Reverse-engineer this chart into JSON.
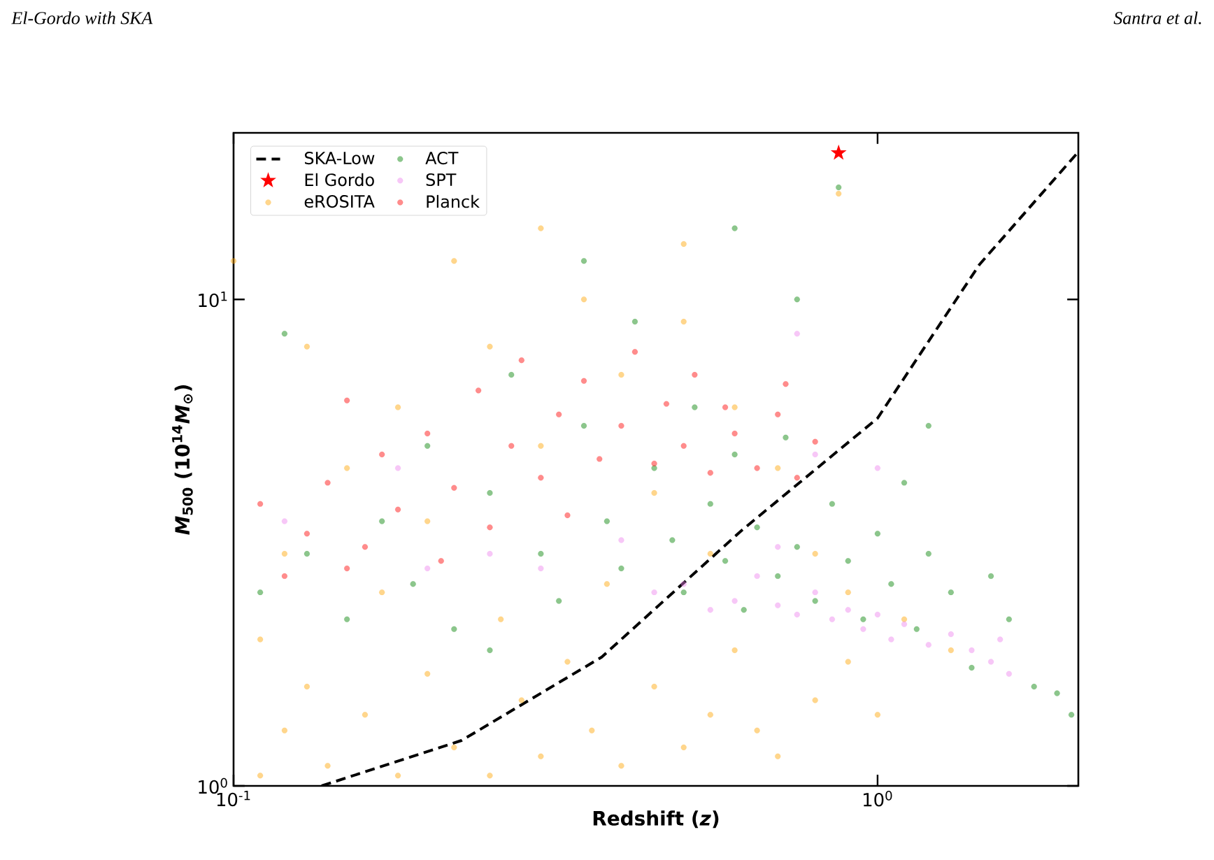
{
  "chart_data": {
    "type": "scatter",
    "xlabel": "Redshift (*z*)",
    "ylabel": "*M*$_{500}$ (10$^{14}$*M*$_{⊙}$)",
    "log": "xy",
    "legend": "top left",
    "xlim": [
      0.1,
      2.05
    ],
    "ylim": [
      1,
      22
    ],
    "xticks": [
      {
        "value": 0.1,
        "label": "10$^{-1}$"
      },
      {
        "value": 1,
        "label": "10$^{0}$"
      }
    ],
    "yticks": [
      {
        "value": 1,
        "label": "10$^{0}$"
      },
      {
        "value": 10,
        "label": "10$^{1}$"
      }
    ],
    "annotations": [
      "El-Gordo with SKA",
      "Santra et al."
    ],
    "series": [
      {
        "name": "SKA-Low",
        "type": "line",
        "color": "#000000",
        "line_style": "dashed",
        "marker": "none",
        "x": [
          0.137,
          0.226,
          0.373,
          0.615,
          1.0,
          1.44,
          2.05
        ],
        "values": [
          1.0,
          1.24,
          1.84,
          3.35,
          5.7,
          11.8,
          20.1
        ]
      },
      {
        "name": "El Gordo",
        "color": "#ff0000",
        "marker": "star",
        "x": [
          0.87
        ],
        "values": [
          20
        ]
      },
      {
        "name": "eROSITA",
        "color": "#ffa500",
        "marker": "circle",
        "x": [
          0.11,
          0.12,
          0.13,
          0.11,
          0.14,
          0.16,
          0.18,
          0.2,
          0.22,
          0.25,
          0.28,
          0.3,
          0.33,
          0.36,
          0.4,
          0.45,
          0.5,
          0.55,
          0.6,
          0.65,
          0.7,
          0.8,
          0.9,
          1.0,
          0.12,
          0.15,
          0.18,
          0.2,
          0.25,
          0.3,
          0.35,
          0.4,
          0.45,
          0.5,
          0.55,
          0.6,
          0.7,
          0.8,
          0.9,
          1.1,
          1.3,
          0.13,
          0.22,
          0.3,
          0.5,
          0.87,
          0.1,
          0.17,
          0.26,
          0.38
        ],
        "values": [
          1.05,
          1.3,
          1.6,
          2.0,
          1.1,
          1.4,
          1.05,
          1.7,
          1.2,
          1.05,
          1.5,
          1.15,
          1.8,
          1.3,
          1.1,
          1.6,
          1.2,
          1.4,
          1.9,
          1.3,
          1.15,
          1.5,
          1.8,
          1.4,
          3,
          4.5,
          6,
          3.5,
          8,
          5,
          10,
          7,
          4,
          9,
          3,
          6,
          4.5,
          3,
          2.5,
          2.2,
          1.9,
          8,
          12,
          14,
          13,
          16.5,
          12,
          2.5,
          2.2,
          2.6
        ]
      },
      {
        "name": "ACT",
        "color": "#008000",
        "marker": "circle",
        "x": [
          0.11,
          0.12,
          0.13,
          0.15,
          0.17,
          0.19,
          0.2,
          0.22,
          0.25,
          0.27,
          0.3,
          0.32,
          0.35,
          0.38,
          0.4,
          0.42,
          0.45,
          0.48,
          0.5,
          0.52,
          0.55,
          0.58,
          0.6,
          0.62,
          0.65,
          0.7,
          0.72,
          0.75,
          0.8,
          0.85,
          0.9,
          0.95,
          1.0,
          1.05,
          1.1,
          1.15,
          1.2,
          1.3,
          1.4,
          1.5,
          1.6,
          1.75,
          1.9,
          2.0,
          0.87,
          0.35,
          0.6,
          0.75,
          1.2,
          0.25
        ],
        "values": [
          2.5,
          8.5,
          3,
          2.2,
          3.5,
          2.6,
          5,
          2.1,
          4,
          7,
          3,
          2.4,
          5.5,
          3.5,
          2.8,
          9,
          4.5,
          3.2,
          2.5,
          6,
          3.8,
          2.9,
          4.8,
          2.3,
          3.4,
          2.7,
          5.2,
          3.1,
          2.4,
          3.8,
          2.9,
          2.2,
          3.3,
          2.6,
          4.2,
          2.1,
          3,
          2.5,
          1.75,
          2.7,
          2.2,
          1.6,
          1.55,
          1.4,
          17,
          12,
          14,
          10,
          5.5,
          1.9
        ]
      },
      {
        "name": "SPT",
        "color": "#ee82ee",
        "marker": "circle",
        "x": [
          0.45,
          0.5,
          0.55,
          0.6,
          0.65,
          0.7,
          0.75,
          0.8,
          0.85,
          0.9,
          0.95,
          1.0,
          1.05,
          1.1,
          1.2,
          1.3,
          1.4,
          1.5,
          1.6,
          1.55,
          0.3,
          0.25,
          0.2,
          0.18,
          0.12,
          0.75,
          0.8,
          1.0,
          0.4,
          0.7
        ],
        "values": [
          2.5,
          2.6,
          2.3,
          2.4,
          2.7,
          2.35,
          2.25,
          2.5,
          2.2,
          2.3,
          2.1,
          2.25,
          2.0,
          2.15,
          1.95,
          2.05,
          1.9,
          1.8,
          1.7,
          2.0,
          2.8,
          3.0,
          2.8,
          4.5,
          3.5,
          8.5,
          4.8,
          4.5,
          3.2,
          3.1
        ]
      },
      {
        "name": "Planck",
        "color": "#ff0000",
        "marker": "circle",
        "x": [
          0.11,
          0.12,
          0.13,
          0.14,
          0.15,
          0.16,
          0.17,
          0.18,
          0.2,
          0.21,
          0.22,
          0.24,
          0.25,
          0.27,
          0.28,
          0.3,
          0.32,
          0.33,
          0.35,
          0.37,
          0.4,
          0.42,
          0.45,
          0.47,
          0.5,
          0.52,
          0.55,
          0.58,
          0.6,
          0.65,
          0.7,
          0.75,
          0.8,
          0.72,
          0.15
        ],
        "values": [
          3.8,
          2.7,
          3.3,
          4.2,
          6.2,
          3.1,
          4.8,
          3.7,
          5.3,
          2.9,
          4.1,
          6.5,
          3.4,
          5.0,
          7.5,
          4.3,
          5.8,
          3.6,
          6.8,
          4.7,
          5.5,
          7.8,
          4.6,
          6.1,
          5.0,
          7.0,
          4.4,
          6.0,
          5.3,
          4.5,
          5.8,
          4.3,
          5.1,
          6.7,
          2.8
        ]
      }
    ]
  }
}
